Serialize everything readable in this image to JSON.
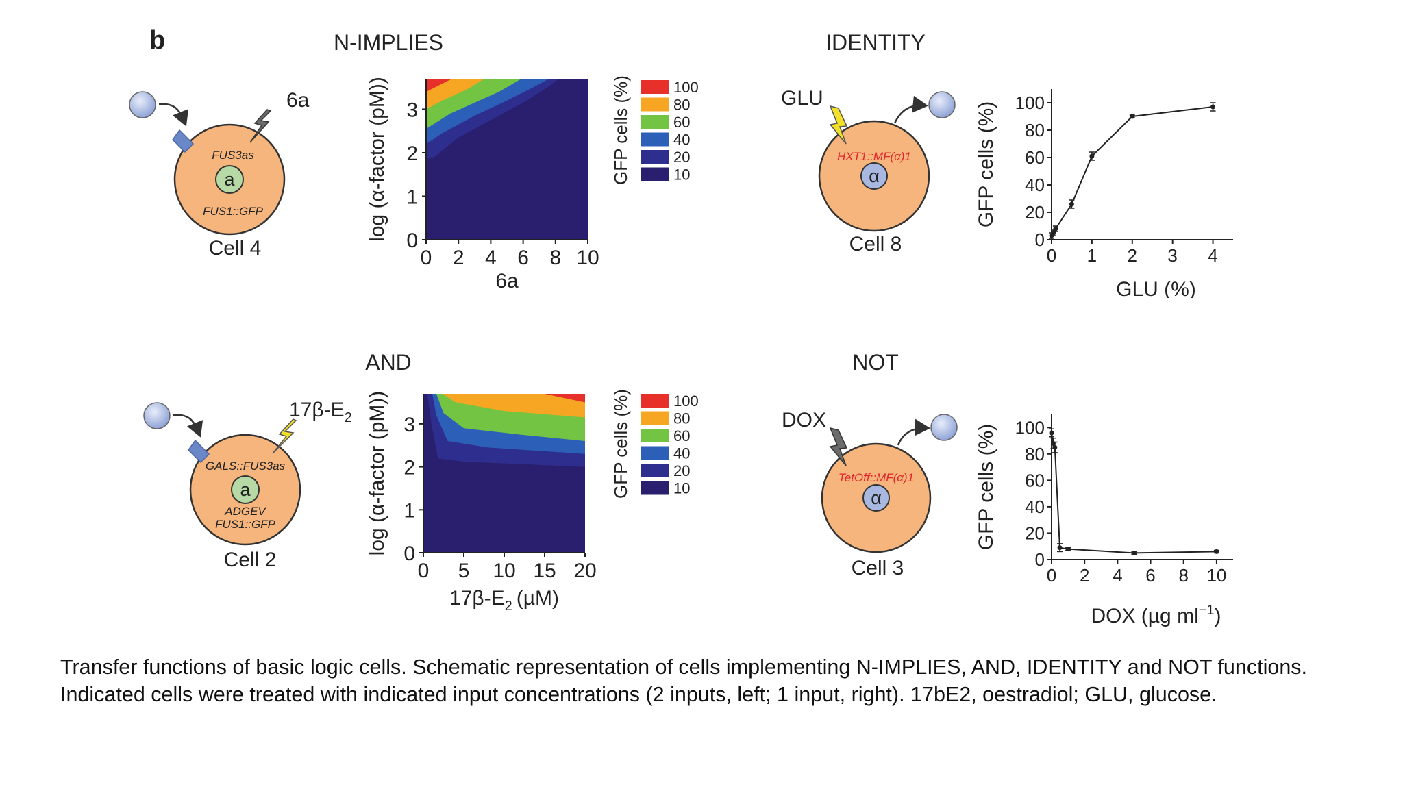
{
  "panel_label": "b",
  "titles": {
    "n_implies": "N-IMPLIES",
    "identity": "IDENTITY",
    "and": "AND",
    "not": "NOT"
  },
  "cells": {
    "cell4": {
      "name": "Cell 4",
      "input": "6a",
      "gene_top": "FUS3as",
      "core": "a",
      "gene_bottom": "FUS1::GFP"
    },
    "cell8": {
      "name": "Cell 8",
      "input": "GLU",
      "gene_top": "HXT1::MF(α)1",
      "core": "α"
    },
    "cell2": {
      "name": "Cell 2",
      "input": "17β-E",
      "input_sub": "2",
      "gene_top": "GALS::FUS3as",
      "core": "a",
      "gene_mid": "ADGEV",
      "gene_bottom": "FUS1::GFP"
    },
    "cell3": {
      "name": "Cell 3",
      "input": "DOX",
      "gene_top": "TetOff::MF(α)1",
      "core": "α"
    }
  },
  "colors": {
    "cell_fill": "#f5b57c",
    "cell_stroke": "#333333",
    "core_fill": "#b7d9a6",
    "alpha_core_fill": "#a8b8e0",
    "ball_fill": "#b8c6ea",
    "bolt_yellow": "#f2e127",
    "bolt_grey": "#6b6b6b",
    "receptor": "#6a88c7",
    "gene_red": "#e0262d"
  },
  "chart_data": [
    {
      "type": "heatmap",
      "title": "N-IMPLIES",
      "xlabel": "6a",
      "ylabel": "log (α-factor (pM))",
      "xlim": [
        0,
        10
      ],
      "ylim": [
        0,
        3.7
      ],
      "xticks": [
        "0",
        "2",
        "4",
        "6",
        "8",
        "10"
      ],
      "yticks": [
        "0",
        "1",
        "2",
        "3"
      ],
      "colorbar_label": "GFP cells (%)",
      "colorbar_levels": [
        "100",
        "80",
        "60",
        "40",
        "20",
        "10"
      ],
      "colorbar_colors": [
        "#e8302a",
        "#f6a623",
        "#73c442",
        "#2c5fb8",
        "#2e2e8e",
        "#2a1f6e"
      ],
      "background": "#2a1f6e",
      "contours": [
        {
          "level": "20",
          "color": "#2e2e8e",
          "points": [
            [
              0,
              3.7
            ],
            [
              0,
              1.85
            ],
            [
              0.5,
              1.9
            ],
            [
              2,
              2.35
            ],
            [
              4,
              2.75
            ],
            [
              6,
              3.15
            ],
            [
              7.5,
              3.5
            ],
            [
              8.2,
              3.7
            ]
          ]
        },
        {
          "level": "40",
          "color": "#2c5fb8",
          "points": [
            [
              0,
              3.7
            ],
            [
              0,
              2.2
            ],
            [
              1,
              2.45
            ],
            [
              3,
              2.85
            ],
            [
              5,
              3.2
            ],
            [
              6.6,
              3.5
            ],
            [
              7.6,
              3.7
            ]
          ]
        },
        {
          "level": "60",
          "color": "#73c442",
          "points": [
            [
              0,
              3.7
            ],
            [
              0,
              2.55
            ],
            [
              1.5,
              2.9
            ],
            [
              3,
              3.15
            ],
            [
              4.5,
              3.4
            ],
            [
              5.9,
              3.7
            ]
          ]
        },
        {
          "level": "80",
          "color": "#f6a623",
          "points": [
            [
              0,
              3.7
            ],
            [
              0,
              3.0
            ],
            [
              1,
              3.2
            ],
            [
              2.5,
              3.45
            ],
            [
              3.6,
              3.7
            ]
          ]
        },
        {
          "level": "100",
          "color": "#e8302a",
          "points": [
            [
              0,
              3.7
            ],
            [
              0,
              3.4
            ],
            [
              0.8,
              3.55
            ],
            [
              1.6,
              3.7
            ]
          ]
        }
      ]
    },
    {
      "type": "line",
      "title": "IDENTITY",
      "xlabel": "GLU (%)",
      "ylabel": "GFP cells (%)",
      "xlim": [
        0,
        4.5
      ],
      "ylim": [
        0,
        110
      ],
      "xticks": [
        0,
        1,
        2,
        3,
        4
      ],
      "yticks": [
        0,
        20,
        40,
        60,
        80,
        100
      ],
      "x": [
        0,
        0.05,
        0.1,
        0.5,
        1,
        2,
        4
      ],
      "y": [
        3,
        5,
        8,
        26,
        61,
        90,
        97
      ],
      "err": [
        2,
        2,
        2,
        3,
        3,
        1,
        3
      ]
    },
    {
      "type": "heatmap",
      "title": "AND",
      "xlabel": "17β-E",
      "xlabel_sub": "2",
      "xlabel_unit": "(µM)",
      "ylabel": "log (α-factor (pM))",
      "xlim": [
        0,
        20
      ],
      "ylim": [
        0,
        3.7
      ],
      "xticks": [
        "0",
        "5",
        "10",
        "15",
        "20"
      ],
      "yticks": [
        "0",
        "1",
        "2",
        "3"
      ],
      "colorbar_label": "GFP cells (%)",
      "colorbar_levels": [
        "100",
        "80",
        "60",
        "40",
        "20",
        "10"
      ],
      "colorbar_colors": [
        "#e8302a",
        "#f6a623",
        "#73c442",
        "#2c5fb8",
        "#2e2e8e",
        "#2a1f6e"
      ],
      "background": "#2a1f6e",
      "contours": [
        {
          "level": "20",
          "color": "#2e2e8e",
          "points": [
            [
              0,
              3.7
            ],
            [
              0.5,
              3.7
            ],
            [
              1,
              3.0
            ],
            [
              1.8,
              2.2
            ],
            [
              5,
              2.12
            ],
            [
              20,
              2.0
            ],
            [
              20,
              3.7
            ]
          ]
        },
        {
          "level": "40",
          "color": "#2c5fb8",
          "points": [
            [
              1.1,
              3.7
            ],
            [
              1.6,
              3.2
            ],
            [
              3,
              2.6
            ],
            [
              8,
              2.45
            ],
            [
              20,
              2.3
            ],
            [
              20,
              3.7
            ]
          ]
        },
        {
          "level": "60",
          "color": "#73c442",
          "points": [
            [
              1.6,
              3.7
            ],
            [
              2.5,
              3.25
            ],
            [
              5,
              2.9
            ],
            [
              12,
              2.75
            ],
            [
              20,
              2.6
            ],
            [
              20,
              3.7
            ]
          ]
        },
        {
          "level": "80",
          "color": "#f6a623",
          "points": [
            [
              2.4,
              3.7
            ],
            [
              4,
              3.5
            ],
            [
              10,
              3.3
            ],
            [
              20,
              3.15
            ],
            [
              20,
              3.7
            ]
          ]
        },
        {
          "level": "100",
          "color": "#e8302a",
          "points": [
            [
              15,
              3.7
            ],
            [
              18,
              3.58
            ],
            [
              20,
              3.5
            ],
            [
              20,
              3.7
            ]
          ]
        }
      ]
    },
    {
      "type": "line",
      "title": "NOT",
      "xlabel": "DOX (µg ml",
      "xlabel_sup": "−1",
      "xlabel_end": ")",
      "ylabel": "GFP cells (%)",
      "xlim": [
        0,
        11
      ],
      "ylim": [
        0,
        110
      ],
      "xticks": [
        0,
        2,
        4,
        6,
        8,
        10
      ],
      "yticks": [
        0,
        20,
        40,
        60,
        80,
        100
      ],
      "x": [
        0,
        0.1,
        0.2,
        0.5,
        1,
        5,
        10
      ],
      "y": [
        96,
        88,
        85,
        9,
        8,
        5,
        6
      ],
      "err": [
        3,
        4,
        4,
        3,
        1,
        1,
        1
      ]
    }
  ],
  "caption": "Transfer functions of basic logic cells. Schematic representation of cells implementing N-IMPLIES, AND, IDENTITY and NOT functions. Indicated cells were treated with indicated input concentrations (2 inputs, left; 1 input, right). 17bE2, oestradiol; GLU, glucose."
}
